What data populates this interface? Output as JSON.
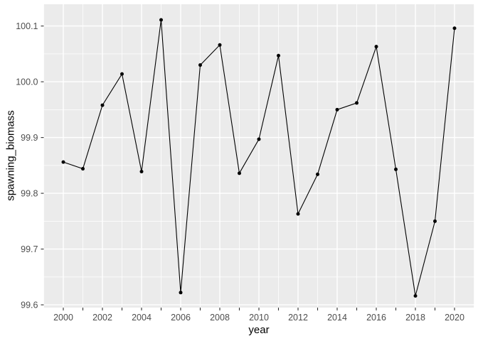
{
  "figure": {
    "xlabel": "year",
    "ylabel": "spawning_biomass"
  },
  "colors": {
    "figure_background": "#FFFFFF",
    "panel_background": "#EBEBEB",
    "grid_major": "#FFFFFF",
    "grid_minor": "#FFFFFF",
    "line": "#000000",
    "point": "#000000",
    "tick_mark": "#333333",
    "tick_label": "#4D4D4D",
    "axis_title": "#000000"
  },
  "chart_data": {
    "type": "line",
    "title": "",
    "xlabel": "year",
    "ylabel": "spawning_biomass",
    "marker": "filled-circle",
    "grid": true,
    "legend": "none",
    "x": [
      2000,
      2001,
      2002,
      2003,
      2004,
      2005,
      2006,
      2007,
      2008,
      2009,
      2010,
      2011,
      2012,
      2013,
      2014,
      2015,
      2016,
      2017,
      2018,
      2019,
      2020
    ],
    "y": [
      99.856,
      99.844,
      99.958,
      100.014,
      99.839,
      100.111,
      99.622,
      100.03,
      100.066,
      99.836,
      99.897,
      100.047,
      99.763,
      99.834,
      99.95,
      99.962,
      100.063,
      99.843,
      99.616,
      99.75,
      100.096
    ],
    "series": [
      {
        "name": "spawning_biomass",
        "values": [
          99.856,
          99.844,
          99.958,
          100.014,
          99.839,
          100.111,
          99.622,
          100.03,
          100.066,
          99.836,
          99.897,
          100.047,
          99.763,
          99.834,
          99.95,
          99.962,
          100.063,
          99.843,
          99.616,
          99.75,
          100.096
        ]
      }
    ],
    "xlim": [
      1999,
      2021
    ],
    "ylim": [
      99.595,
      100.139
    ],
    "x_axis_tick_years": [
      2000,
      2001,
      2002,
      2003,
      2004,
      2005,
      2006,
      2007,
      2008,
      2009,
      2010,
      2011,
      2012,
      2013,
      2014,
      2015,
      2016,
      2017,
      2018,
      2019,
      2020
    ],
    "x_label_years": [
      2000,
      2002,
      2004,
      2006,
      2008,
      2010,
      2012,
      2014,
      2016,
      2018,
      2020
    ],
    "x_tick_labels": [
      "2000",
      "2002",
      "2004",
      "2006",
      "2008",
      "2010",
      "2012",
      "2014",
      "2016",
      "2018",
      "2020"
    ],
    "x_major_gridlines": [
      2000,
      2002,
      2004,
      2006,
      2008,
      2010,
      2012,
      2014,
      2016,
      2018,
      2020
    ],
    "x_minor_gridlines": [
      1999,
      2001,
      2003,
      2005,
      2007,
      2009,
      2011,
      2013,
      2015,
      2017,
      2019,
      2021
    ],
    "y_tick_positions": [
      99.6,
      99.7,
      99.8,
      99.9,
      100.0,
      100.1
    ],
    "y_tick_labels": [
      "99.6",
      "99.7",
      "99.8",
      "99.9",
      "100.0",
      "100.1"
    ],
    "y_major_gridlines": [
      99.6,
      99.7,
      99.8,
      99.9,
      100.0,
      100.1
    ],
    "y_minor_gridlines": [
      99.65,
      99.75,
      99.85,
      99.95,
      100.05
    ]
  }
}
